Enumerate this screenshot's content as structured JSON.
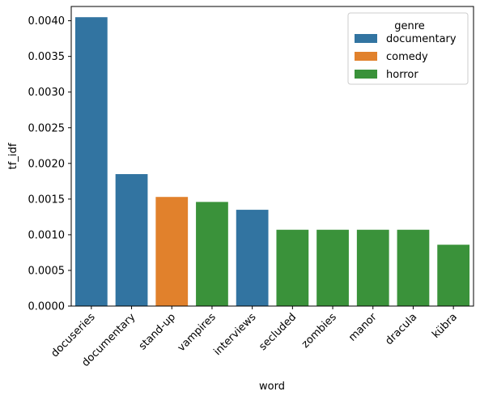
{
  "chart_data": {
    "type": "bar",
    "categories": [
      "docuseries",
      "documentary",
      "stand-up",
      "vampires",
      "interviews",
      "secluded",
      "zombies",
      "manor",
      "dracula",
      "kübra"
    ],
    "values": [
      0.00405,
      0.00185,
      0.00153,
      0.00146,
      0.00135,
      0.00107,
      0.00107,
      0.00107,
      0.00107,
      0.00086
    ],
    "bar_genres": [
      "documentary",
      "documentary",
      "comedy",
      "horror",
      "documentary",
      "horror",
      "horror",
      "horror",
      "horror",
      "horror"
    ],
    "xlabel": "word",
    "ylabel": "tf_idf",
    "ylim": [
      0,
      0.0042
    ],
    "yticks": [
      0.0,
      0.0005,
      0.001,
      0.0015,
      0.002,
      0.0025,
      0.003,
      0.0035,
      0.004
    ],
    "ytick_labels": [
      "0.0000",
      "0.0005",
      "0.0010",
      "0.0015",
      "0.0020",
      "0.0025",
      "0.0030",
      "0.0035",
      "0.0040"
    ],
    "grid": false,
    "legend": {
      "title": "genre",
      "placement": "top-right",
      "entries": [
        {
          "label": "documentary",
          "color": "#3274a1"
        },
        {
          "label": "comedy",
          "color": "#e1812c"
        },
        {
          "label": "horror",
          "color": "#3a923a"
        }
      ]
    }
  }
}
